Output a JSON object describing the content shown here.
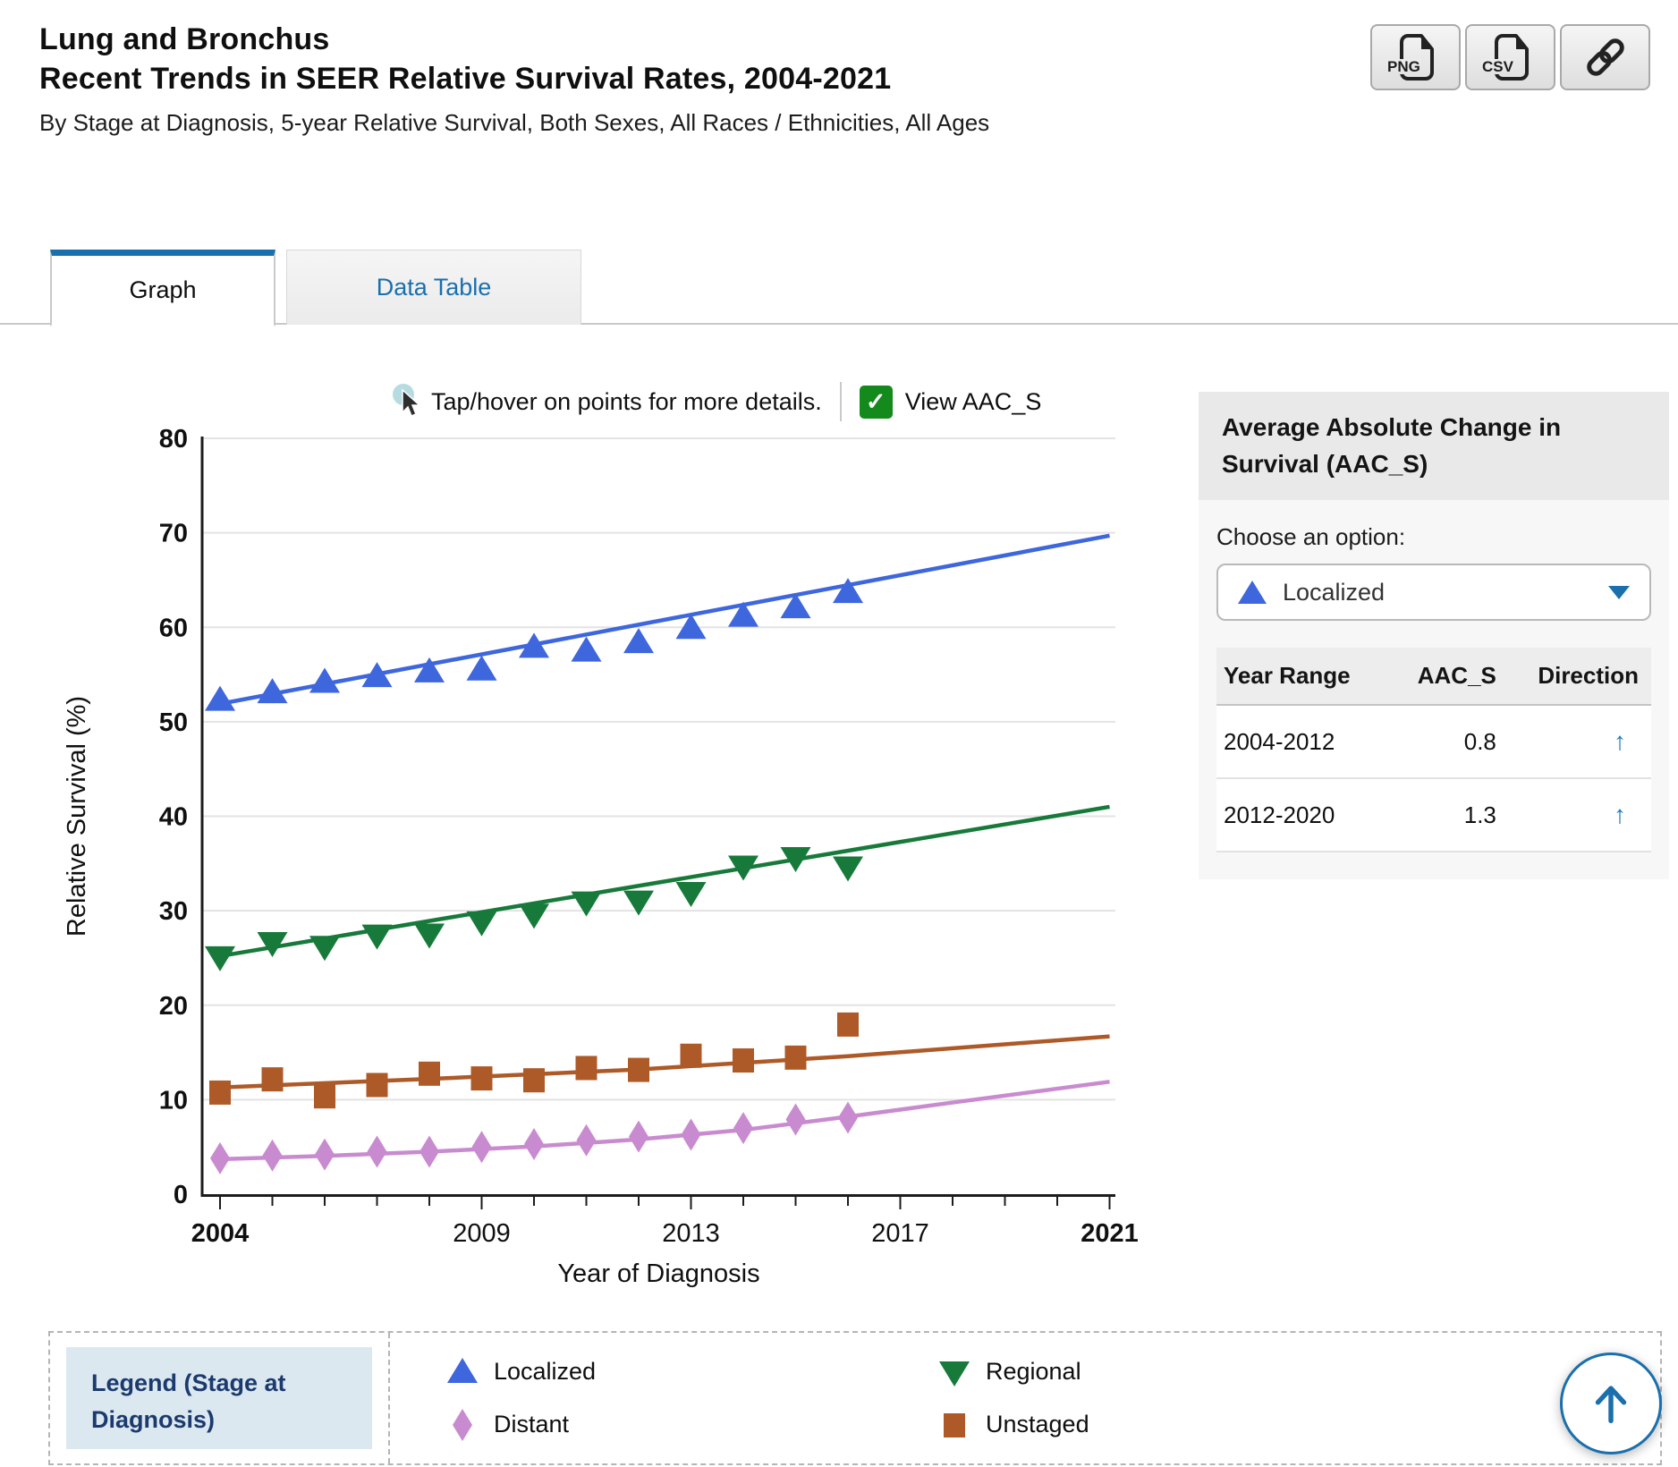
{
  "header": {
    "title_line1": "Lung and Bronchus",
    "title_line2": "Recent Trends in SEER Relative Survival Rates, 2004-2021",
    "subtitle": "By Stage at Diagnosis, 5-year Relative Survival, Both Sexes, All Races / Ethnicities, All Ages"
  },
  "export_buttons": {
    "png_label": "PNG",
    "csv_label": "CSV"
  },
  "tabs": [
    {
      "label": "Graph",
      "active": true
    },
    {
      "label": "Data Table",
      "active": false
    }
  ],
  "toolbar": {
    "hint": "Tap/hover on points for more details.",
    "checkbox_label": "View AAC_S",
    "checkbox_checked": true
  },
  "aac_panel": {
    "title": "Average Absolute Change in Survival (AAC_S)",
    "choose_label": "Choose an option:",
    "selected_option": "Localized",
    "table": {
      "headers": [
        "Year Range",
        "AAC_S",
        "Direction"
      ],
      "rows": [
        {
          "year_range": "2004-2012",
          "aac_s": "0.8",
          "direction": "up"
        },
        {
          "year_range": "2012-2020",
          "aac_s": "1.3",
          "direction": "up"
        }
      ]
    }
  },
  "legend": {
    "title": "Legend (Stage at Diagnosis)",
    "items": [
      {
        "label": "Localized",
        "marker": "triangle-up",
        "color": "#3e66dd"
      },
      {
        "label": "Regional",
        "marker": "triangle-down",
        "color": "#177a3a"
      },
      {
        "label": "Distant",
        "marker": "diamond",
        "color": "#c98bd0"
      },
      {
        "label": "Unstaged",
        "marker": "square",
        "color": "#ad5a28"
      }
    ]
  },
  "colors": {
    "accent_blue": "#1a6fad",
    "localized": "#3e66dd",
    "regional": "#177a3a",
    "distant": "#c98bd0",
    "unstaged": "#ad5a28",
    "checkbox_green": "#14891c",
    "grid": "#e3e3e3",
    "axis": "#1c1c1c"
  },
  "chart_data": {
    "type": "scatter",
    "title": "",
    "xlabel": "Year of Diagnosis",
    "ylabel": "Relative Survival (%)",
    "xlim": [
      2004,
      2021
    ],
    "ylim": [
      0,
      80
    ],
    "grid": true,
    "y_ticks": [
      0,
      10,
      20,
      30,
      40,
      50,
      60,
      70,
      80
    ],
    "x_ticks_labeled": [
      2004,
      2009,
      2013,
      2017,
      2021
    ],
    "x_ticks_bold": [
      2004,
      2021
    ],
    "x": [
      2004,
      2005,
      2006,
      2007,
      2008,
      2009,
      2010,
      2011,
      2012,
      2013,
      2014,
      2015,
      2016
    ],
    "series": [
      {
        "name": "Localized",
        "color": "#3e66dd",
        "marker": "triangle-up",
        "values": [
          52.3,
          53.1,
          54.2,
          54.8,
          55.3,
          55.5,
          57.9,
          57.5,
          58.4,
          59.9,
          61.2,
          62.1,
          63.7
        ],
        "trend": [
          [
            2004,
            51.9
          ],
          [
            2021,
            69.7
          ]
        ]
      },
      {
        "name": "Regional",
        "color": "#177a3a",
        "marker": "triangle-down",
        "values": [
          25.1,
          26.6,
          26.2,
          27.4,
          27.5,
          28.8,
          29.6,
          30.9,
          31.0,
          31.9,
          34.7,
          35.6,
          34.6
        ],
        "trend": [
          [
            2004,
            25.2
          ],
          [
            2021,
            41.0
          ]
        ]
      },
      {
        "name": "Unstaged",
        "color": "#ad5a28",
        "marker": "square",
        "values": [
          10.8,
          12.2,
          10.4,
          11.6,
          12.8,
          12.3,
          12.1,
          13.4,
          13.2,
          14.7,
          14.2,
          14.5,
          18.0
        ],
        "trend": [
          [
            2004,
            11.3
          ],
          [
            2008,
            12.2
          ],
          [
            2012,
            13.2
          ],
          [
            2016,
            14.6
          ],
          [
            2021,
            16.7
          ]
        ]
      },
      {
        "name": "Distant",
        "color": "#c98bd0",
        "marker": "diamond",
        "values": [
          3.8,
          4.1,
          4.2,
          4.5,
          4.5,
          5.0,
          5.3,
          5.7,
          6.1,
          6.3,
          7.0,
          7.9,
          8.1
        ],
        "trend": [
          [
            2004,
            3.7
          ],
          [
            2006,
            4.05
          ],
          [
            2008,
            4.5
          ],
          [
            2010,
            5.05
          ],
          [
            2012,
            5.8
          ],
          [
            2014,
            6.8
          ],
          [
            2016,
            8.2
          ],
          [
            2018,
            9.7
          ],
          [
            2021,
            11.9
          ]
        ]
      }
    ]
  }
}
